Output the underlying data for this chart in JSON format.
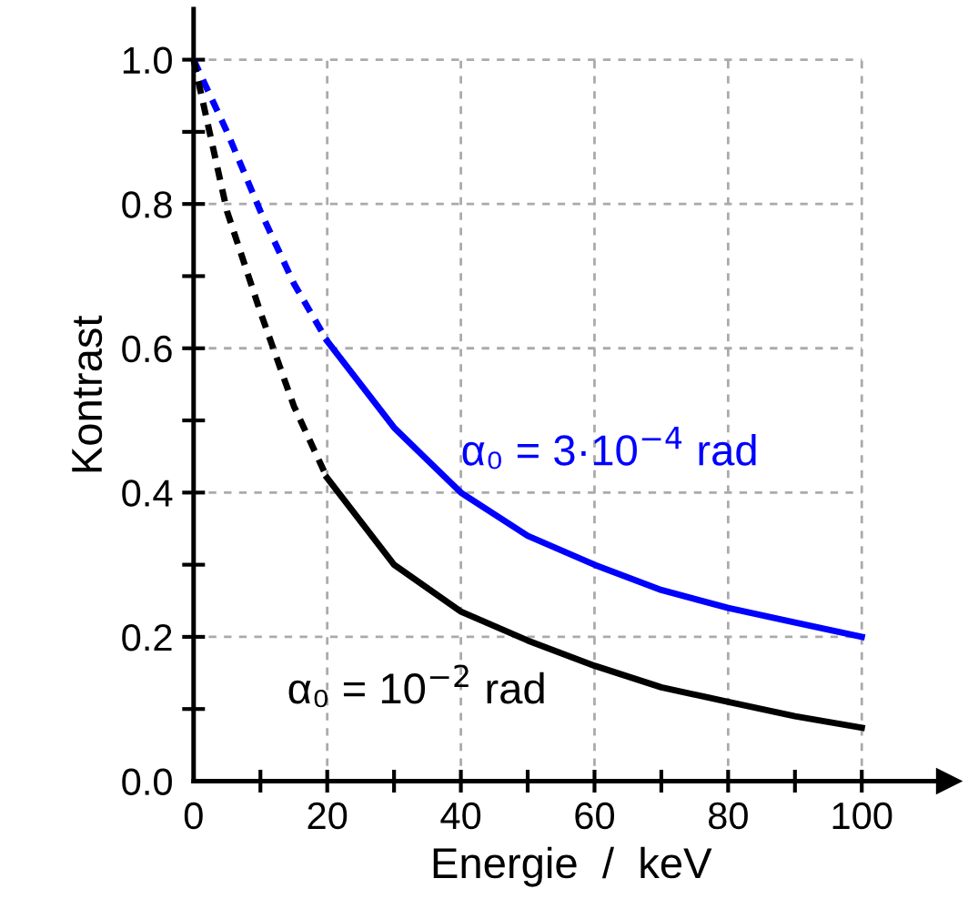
{
  "chart_data": {
    "type": "line",
    "xlabel": "Energie  /  keV",
    "ylabel": "Kontrast",
    "xlim": [
      0,
      113
    ],
    "ylim": [
      0,
      1.07
    ],
    "xticks": [
      0,
      {
        "value": 10,
        "label": null
      },
      20,
      {
        "value": 30,
        "label": null
      },
      40,
      {
        "value": 50,
        "label": null
      },
      60,
      {
        "value": 70,
        "label": null
      },
      80,
      {
        "value": 90,
        "label": null
      },
      100
    ],
    "yticks": [
      {
        "value": 0,
        "label": "0.0"
      },
      {
        "value": 0.1,
        "label": null
      },
      {
        "value": 0.2,
        "label": "0.2"
      },
      {
        "value": 0.3,
        "label": null
      },
      {
        "value": 0.4,
        "label": "0.4"
      },
      {
        "value": 0.5,
        "label": null
      },
      {
        "value": 0.6,
        "label": "0.6"
      },
      {
        "value": 0.7,
        "label": null
      },
      {
        "value": 0.8,
        "label": "0.8"
      },
      {
        "value": 0.9,
        "label": null
      },
      {
        "value": 1.0,
        "label": "1.0"
      }
    ],
    "grid": true,
    "legend": false,
    "marker": "none",
    "series": [
      {
        "color": "#0000ff",
        "line_style": "dashed",
        "x": [
          0,
          5,
          10,
          15,
          20
        ],
        "values": [
          1.0,
          0.9,
          0.79,
          0.69,
          0.61
        ]
      },
      {
        "name": "α₀ = 3·10$^{−4}$ rad",
        "color": "#0000ff",
        "line_style": "solid",
        "x": [
          20,
          30,
          40,
          50,
          60,
          70,
          80,
          90,
          100
        ],
        "values": [
          0.61,
          0.49,
          0.4,
          0.34,
          0.3,
          0.265,
          0.24,
          0.22,
          0.2
        ]
      },
      {
        "color": "#000000",
        "line_style": "dashed",
        "x": [
          0,
          5,
          10,
          15,
          20
        ],
        "values": [
          1.0,
          0.79,
          0.65,
          0.52,
          0.42
        ]
      },
      {
        "name": "α₀ = 10$^{−2}$ rad",
        "color": "#000000",
        "line_style": "solid",
        "x": [
          20,
          30,
          40,
          50,
          60,
          70,
          80,
          90,
          100
        ],
        "values": [
          0.42,
          0.3,
          0.235,
          0.195,
          0.16,
          0.13,
          0.11,
          0.09,
          0.074
        ]
      }
    ]
  }
}
